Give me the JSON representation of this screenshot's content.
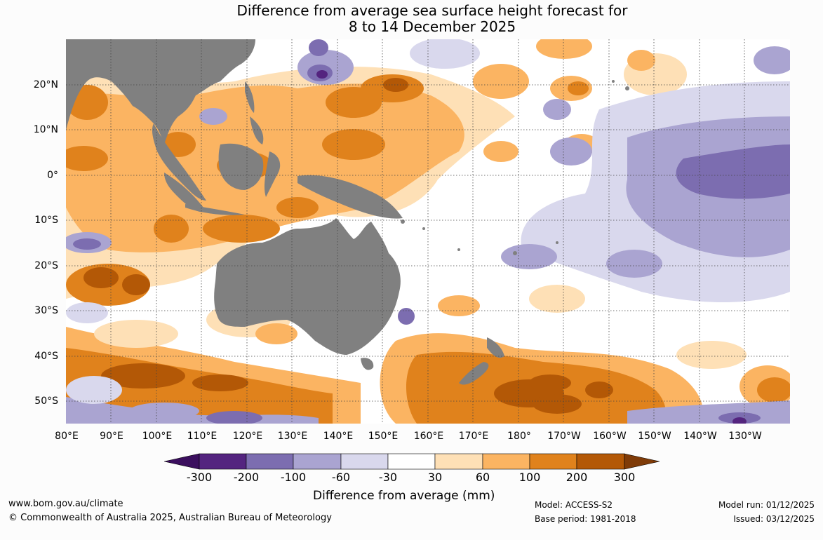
{
  "title": {
    "line1": "Difference from average sea surface height forecast for",
    "line2": "8 to 14 December 2025"
  },
  "map": {
    "lat_labels": [
      "20°N",
      "10°N",
      "0°",
      "10°S",
      "20°S",
      "30°S",
      "40°S",
      "50°S"
    ],
    "lon_labels": [
      "80°E",
      "90°E",
      "100°E",
      "110°E",
      "120°E",
      "130°E",
      "140°E",
      "150°E",
      "160°E",
      "170°E",
      "180°",
      "170°W",
      "160°W",
      "150°W",
      "140°W",
      "130°W"
    ],
    "land_color": "#808080",
    "regions": [
      "asia-mainland",
      "maritime-continent",
      "australia",
      "new-zealand",
      "pacific-islands"
    ]
  },
  "colorbar": {
    "tick_labels": [
      "-300",
      "-200",
      "-100",
      "-60",
      "-30",
      "30",
      "60",
      "100",
      "200",
      "300"
    ],
    "colors": [
      "#3b0f5e",
      "#54247f",
      "#7c6db0",
      "#aaa4d1",
      "#d9d8ed",
      "#ffffff",
      "#fee0b6",
      "#fbb462",
      "#e0821c",
      "#b35806",
      "#7f3b08"
    ],
    "title": "Difference from average (mm)"
  },
  "footer": {
    "url": "www.bom.gov.au/climate",
    "copyright": "© Commonwealth of Australia 2025, Australian Bureau of Meteorology",
    "model": "Model: ACCESS-S2",
    "base_period": "Base period: 1981-2018",
    "model_run": "Model run: 01/12/2025",
    "issued": "Issued: 03/12/2025"
  }
}
